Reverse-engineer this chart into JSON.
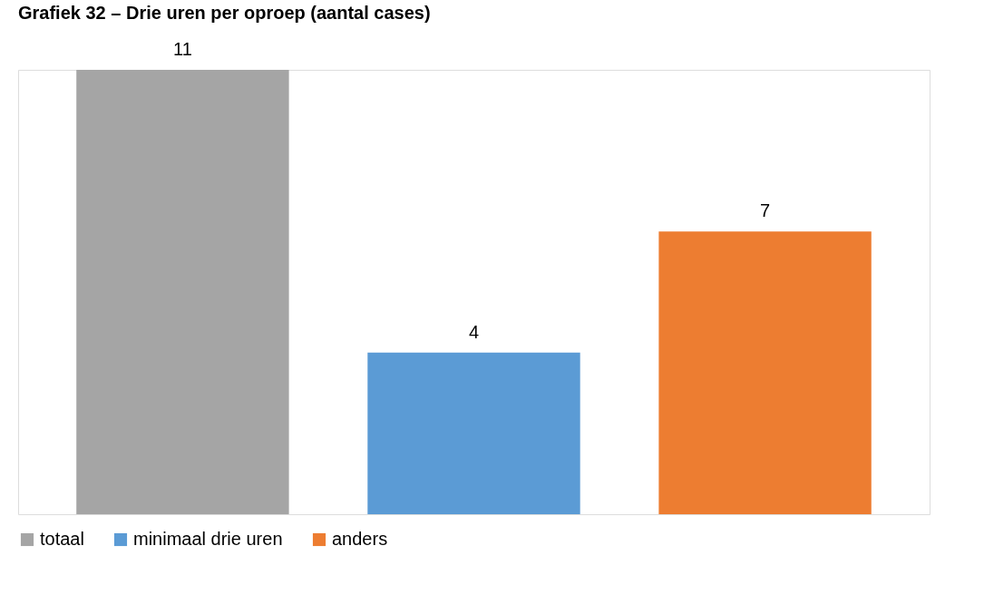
{
  "chart_data": {
    "type": "bar",
    "title": "Grafiek 32 – Drie uren per oproep (aantal cases)",
    "categories": [
      null
    ],
    "series": [
      {
        "name": "totaal",
        "color": "#a5a5a5",
        "values": [
          11
        ]
      },
      {
        "name": "minimaal drie uren",
        "color": "#5b9bd5",
        "values": [
          4
        ]
      },
      {
        "name": "anders",
        "color": "#ed7d31",
        "values": [
          7
        ]
      }
    ],
    "data_labels": true,
    "legend": "bottom",
    "grid": false,
    "tick_labels": false
  }
}
